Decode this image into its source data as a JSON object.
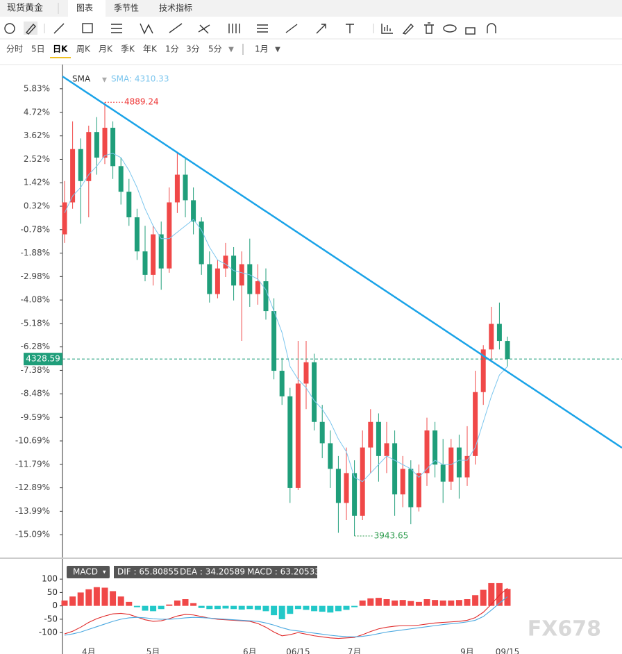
{
  "header": {
    "title": "现货黄金",
    "tabs": [
      "图表",
      "季节性",
      "技术指标"
    ],
    "periods": [
      "分时",
      "5日",
      "日K",
      "周K",
      "月K",
      "季K",
      "年K",
      "1分",
      "3分",
      "5分"
    ],
    "range": "1月"
  },
  "chart_data": {
    "type": "candlestick",
    "indicator": "SMA",
    "sma_label": "SMA: 4310.33",
    "max_price": 4889.24,
    "min_price": 3943.65,
    "last_price": 4328.59,
    "up_color": "#f04848",
    "down_color": "#1f9e7a",
    "sma_color": "#7cc6ee",
    "trend_color": "#1aa3e8",
    "ylim": [
      -16.16,
      6.9
    ],
    "yticks": [
      {
        "value": 5.83,
        "label": "5.83%"
      },
      {
        "value": 4.72,
        "label": "4.72%"
      },
      {
        "value": 3.62,
        "label": "3.62%"
      },
      {
        "value": 2.52,
        "label": "2.52%"
      },
      {
        "value": 1.42,
        "label": "1.42%"
      },
      {
        "value": 0.32,
        "label": "0.32%"
      },
      {
        "value": -0.78,
        "label": "-0.78%"
      },
      {
        "value": -1.88,
        "label": "-1.88%"
      },
      {
        "value": -2.98,
        "label": "-2.98%"
      },
      {
        "value": -4.08,
        "label": "-4.08%"
      },
      {
        "value": -5.18,
        "label": "-5.18%"
      },
      {
        "value": -6.28,
        "label": "-6.28%"
      },
      {
        "value": -7.38,
        "label": "-7.38%"
      },
      {
        "value": -8.48,
        "label": "-8.48%"
      },
      {
        "value": -9.59,
        "label": "-9.59%"
      },
      {
        "value": -10.69,
        "label": "-10.69%"
      },
      {
        "value": -11.79,
        "label": "-11.79%"
      },
      {
        "value": -12.89,
        "label": "-12.89%"
      },
      {
        "value": -13.99,
        "label": "-13.99%"
      },
      {
        "value": -15.09,
        "label": "-15.09%"
      }
    ],
    "categories": [
      null,
      null,
      null,
      "4月",
      null,
      null,
      null,
      null,
      null,
      null,
      null,
      "5月",
      null,
      null,
      null,
      null,
      null,
      null,
      null,
      null,
      null,
      null,
      null,
      "6月",
      null,
      null,
      null,
      null,
      null,
      "06/15",
      null,
      null,
      null,
      null,
      null,
      null,
      "7月",
      null,
      null,
      null,
      null,
      null,
      null,
      null,
      null,
      null,
      null,
      null,
      null,
      null,
      "9月",
      null,
      null,
      null,
      null,
      "09/15"
    ],
    "open": [
      -1.0,
      0.5,
      3.0,
      1.5,
      3.8,
      2.6,
      4.0,
      2.2,
      1.0,
      -0.2,
      -1.8,
      -2.9,
      -1.0,
      -2.6,
      0.5,
      1.8,
      0.6,
      -0.4,
      -2.4,
      -3.8,
      -2.6,
      -2.0,
      -3.4,
      -2.4,
      -3.8,
      -3.2,
      -4.6,
      -7.4,
      -8.6,
      -12.9,
      -8.0,
      -7.0,
      -9.8,
      -10.8,
      -12.0,
      -13.6,
      -12.2,
      -14.2,
      -11.0,
      -9.8,
      -11.4,
      -10.8,
      -13.2,
      -12.0,
      -13.8,
      -12.2,
      -10.2,
      -11.8,
      -12.6,
      -11.0,
      -12.4,
      -11.4,
      -8.4,
      -6.4,
      -5.2,
      -6.0
    ],
    "close": [
      0.5,
      3.0,
      1.5,
      3.8,
      2.6,
      4.0,
      2.2,
      1.0,
      -0.2,
      -1.8,
      -2.9,
      -1.0,
      -2.6,
      0.5,
      1.8,
      0.6,
      -0.4,
      -2.4,
      -3.8,
      -2.6,
      -2.0,
      -3.4,
      -2.4,
      -3.8,
      -3.2,
      -4.6,
      -7.4,
      -8.6,
      -12.9,
      -8.0,
      -7.0,
      -9.8,
      -10.8,
      -12.0,
      -13.6,
      -12.2,
      -14.2,
      -11.0,
      -9.8,
      -11.4,
      -10.8,
      -13.2,
      -12.0,
      -13.8,
      -12.2,
      -10.2,
      -11.8,
      -12.6,
      -11.0,
      -12.4,
      -11.4,
      -8.4,
      -6.4,
      -5.2,
      -6.0,
      -6.85
    ],
    "high": [
      1.5,
      4.3,
      3.5,
      4.1,
      4.5,
      5.2,
      4.3,
      2.6,
      1.6,
      0.2,
      -0.6,
      -0.6,
      -0.4,
      1.2,
      2.8,
      2.6,
      1.2,
      -0.2,
      -1.8,
      -2.2,
      -1.4,
      -1.6,
      -1.8,
      -1.2,
      -2.4,
      -2.6,
      -4.0,
      -6.8,
      -8.2,
      -6.0,
      -6.0,
      -6.6,
      -9.0,
      -10.2,
      -11.4,
      -11.0,
      -11.6,
      -10.2,
      -9.2,
      -9.4,
      -9.8,
      -10.2,
      -11.4,
      -11.6,
      -11.8,
      -9.6,
      -9.8,
      -10.6,
      -10.6,
      -10.4,
      -10.0,
      -7.4,
      -6.2,
      -4.4,
      -4.2,
      -5.8
    ],
    "low": [
      -1.4,
      0.2,
      -0.5,
      -0.2,
      1.8,
      2.3,
      1.6,
      0.4,
      -0.6,
      -2.2,
      -3.2,
      -3.4,
      -3.6,
      -2.8,
      0.0,
      -0.2,
      -1.0,
      -2.9,
      -4.2,
      -4.0,
      -3.0,
      -4.1,
      -6.0,
      -4.4,
      -4.3,
      -5.0,
      -7.8,
      -9.0,
      -13.6,
      -13.0,
      -9.2,
      -10.2,
      -11.5,
      -12.9,
      -15.0,
      -14.4,
      -15.15,
      -14.4,
      -12.2,
      -12.6,
      -12.2,
      -14.2,
      -13.8,
      -14.6,
      -14.0,
      -12.8,
      -12.4,
      -13.6,
      -13.0,
      -13.4,
      -12.8,
      -11.8,
      -9.0,
      -7.0,
      -6.4,
      -7.2
    ],
    "sma": [
      0.0,
      0.8,
      1.2,
      1.8,
      2.2,
      2.7,
      2.8,
      2.6,
      2.0,
      1.2,
      0.2,
      -0.6,
      -1.2,
      -1.2,
      -0.9,
      -0.6,
      -0.3,
      -0.8,
      -1.6,
      -2.2,
      -2.4,
      -2.7,
      -2.8,
      -2.9,
      -3.1,
      -3.6,
      -4.6,
      -5.6,
      -7.2,
      -7.8,
      -8.2,
      -8.8,
      -9.2,
      -9.8,
      -10.6,
      -11.2,
      -12.4,
      -12.6,
      -12.2,
      -11.8,
      -11.4,
      -11.6,
      -11.8,
      -12.0,
      -12.4,
      -12.0,
      -11.6,
      -11.8,
      -11.8,
      -11.6,
      -11.6,
      -11.0,
      -9.8,
      -8.6,
      -7.6,
      -7.2
    ],
    "macd": {
      "title": "MACD",
      "dif_label": "DIF : 65.80855",
      "dea_label": "DEA : 34.20589",
      "macd_label": "MACD : 63.20533",
      "ylim": [
        -149,
        116
      ],
      "yticks": [
        100,
        50,
        0,
        -50,
        -100
      ],
      "pos_color": "#f04848",
      "neg_color": "#22c8c8",
      "dif_color": "#e02a2a",
      "dea_color": "#4aa8e0",
      "hist": [
        20,
        35,
        50,
        62,
        70,
        68,
        55,
        35,
        15,
        -5,
        -18,
        -20,
        -12,
        5,
        20,
        25,
        10,
        -8,
        -12,
        -12,
        -10,
        -12,
        -14,
        -12,
        -15,
        -20,
        -35,
        -50,
        -30,
        -12,
        -15,
        -20,
        -22,
        -25,
        -20,
        -15,
        -5,
        20,
        28,
        30,
        25,
        20,
        22,
        18,
        15,
        25,
        22,
        20,
        20,
        22,
        25,
        40,
        60,
        85,
        85,
        63.20533
      ],
      "dif": [
        -105,
        -95,
        -80,
        -62,
        -48,
        -38,
        -30,
        -28,
        -32,
        -42,
        -52,
        -58,
        -56,
        -48,
        -38,
        -32,
        -34,
        -40,
        -46,
        -50,
        -52,
        -54,
        -56,
        -58,
        -66,
        -80,
        -98,
        -112,
        -108,
        -100,
        -106,
        -112,
        -116,
        -120,
        -122,
        -120,
        -118,
        -108,
        -96,
        -86,
        -80,
        -76,
        -74,
        -74,
        -72,
        -68,
        -64,
        -62,
        -60,
        -58,
        -54,
        -44,
        -24,
        6,
        40,
        65.80855
      ],
      "dea": [
        -110,
        -105,
        -98,
        -88,
        -78,
        -68,
        -58,
        -50,
        -45,
        -43,
        -45,
        -48,
        -50,
        -50,
        -48,
        -45,
        -43,
        -44,
        -46,
        -48,
        -50,
        -52,
        -54,
        -56,
        -58,
        -64,
        -72,
        -82,
        -90,
        -94,
        -98,
        -102,
        -106,
        -110,
        -113,
        -115,
        -116,
        -114,
        -110,
        -104,
        -98,
        -94,
        -90,
        -86,
        -82,
        -78,
        -74,
        -70,
        -67,
        -64,
        -60,
        -54,
        -40,
        -16,
        10,
        34.20589
      ]
    },
    "watermark": "FX678"
  }
}
